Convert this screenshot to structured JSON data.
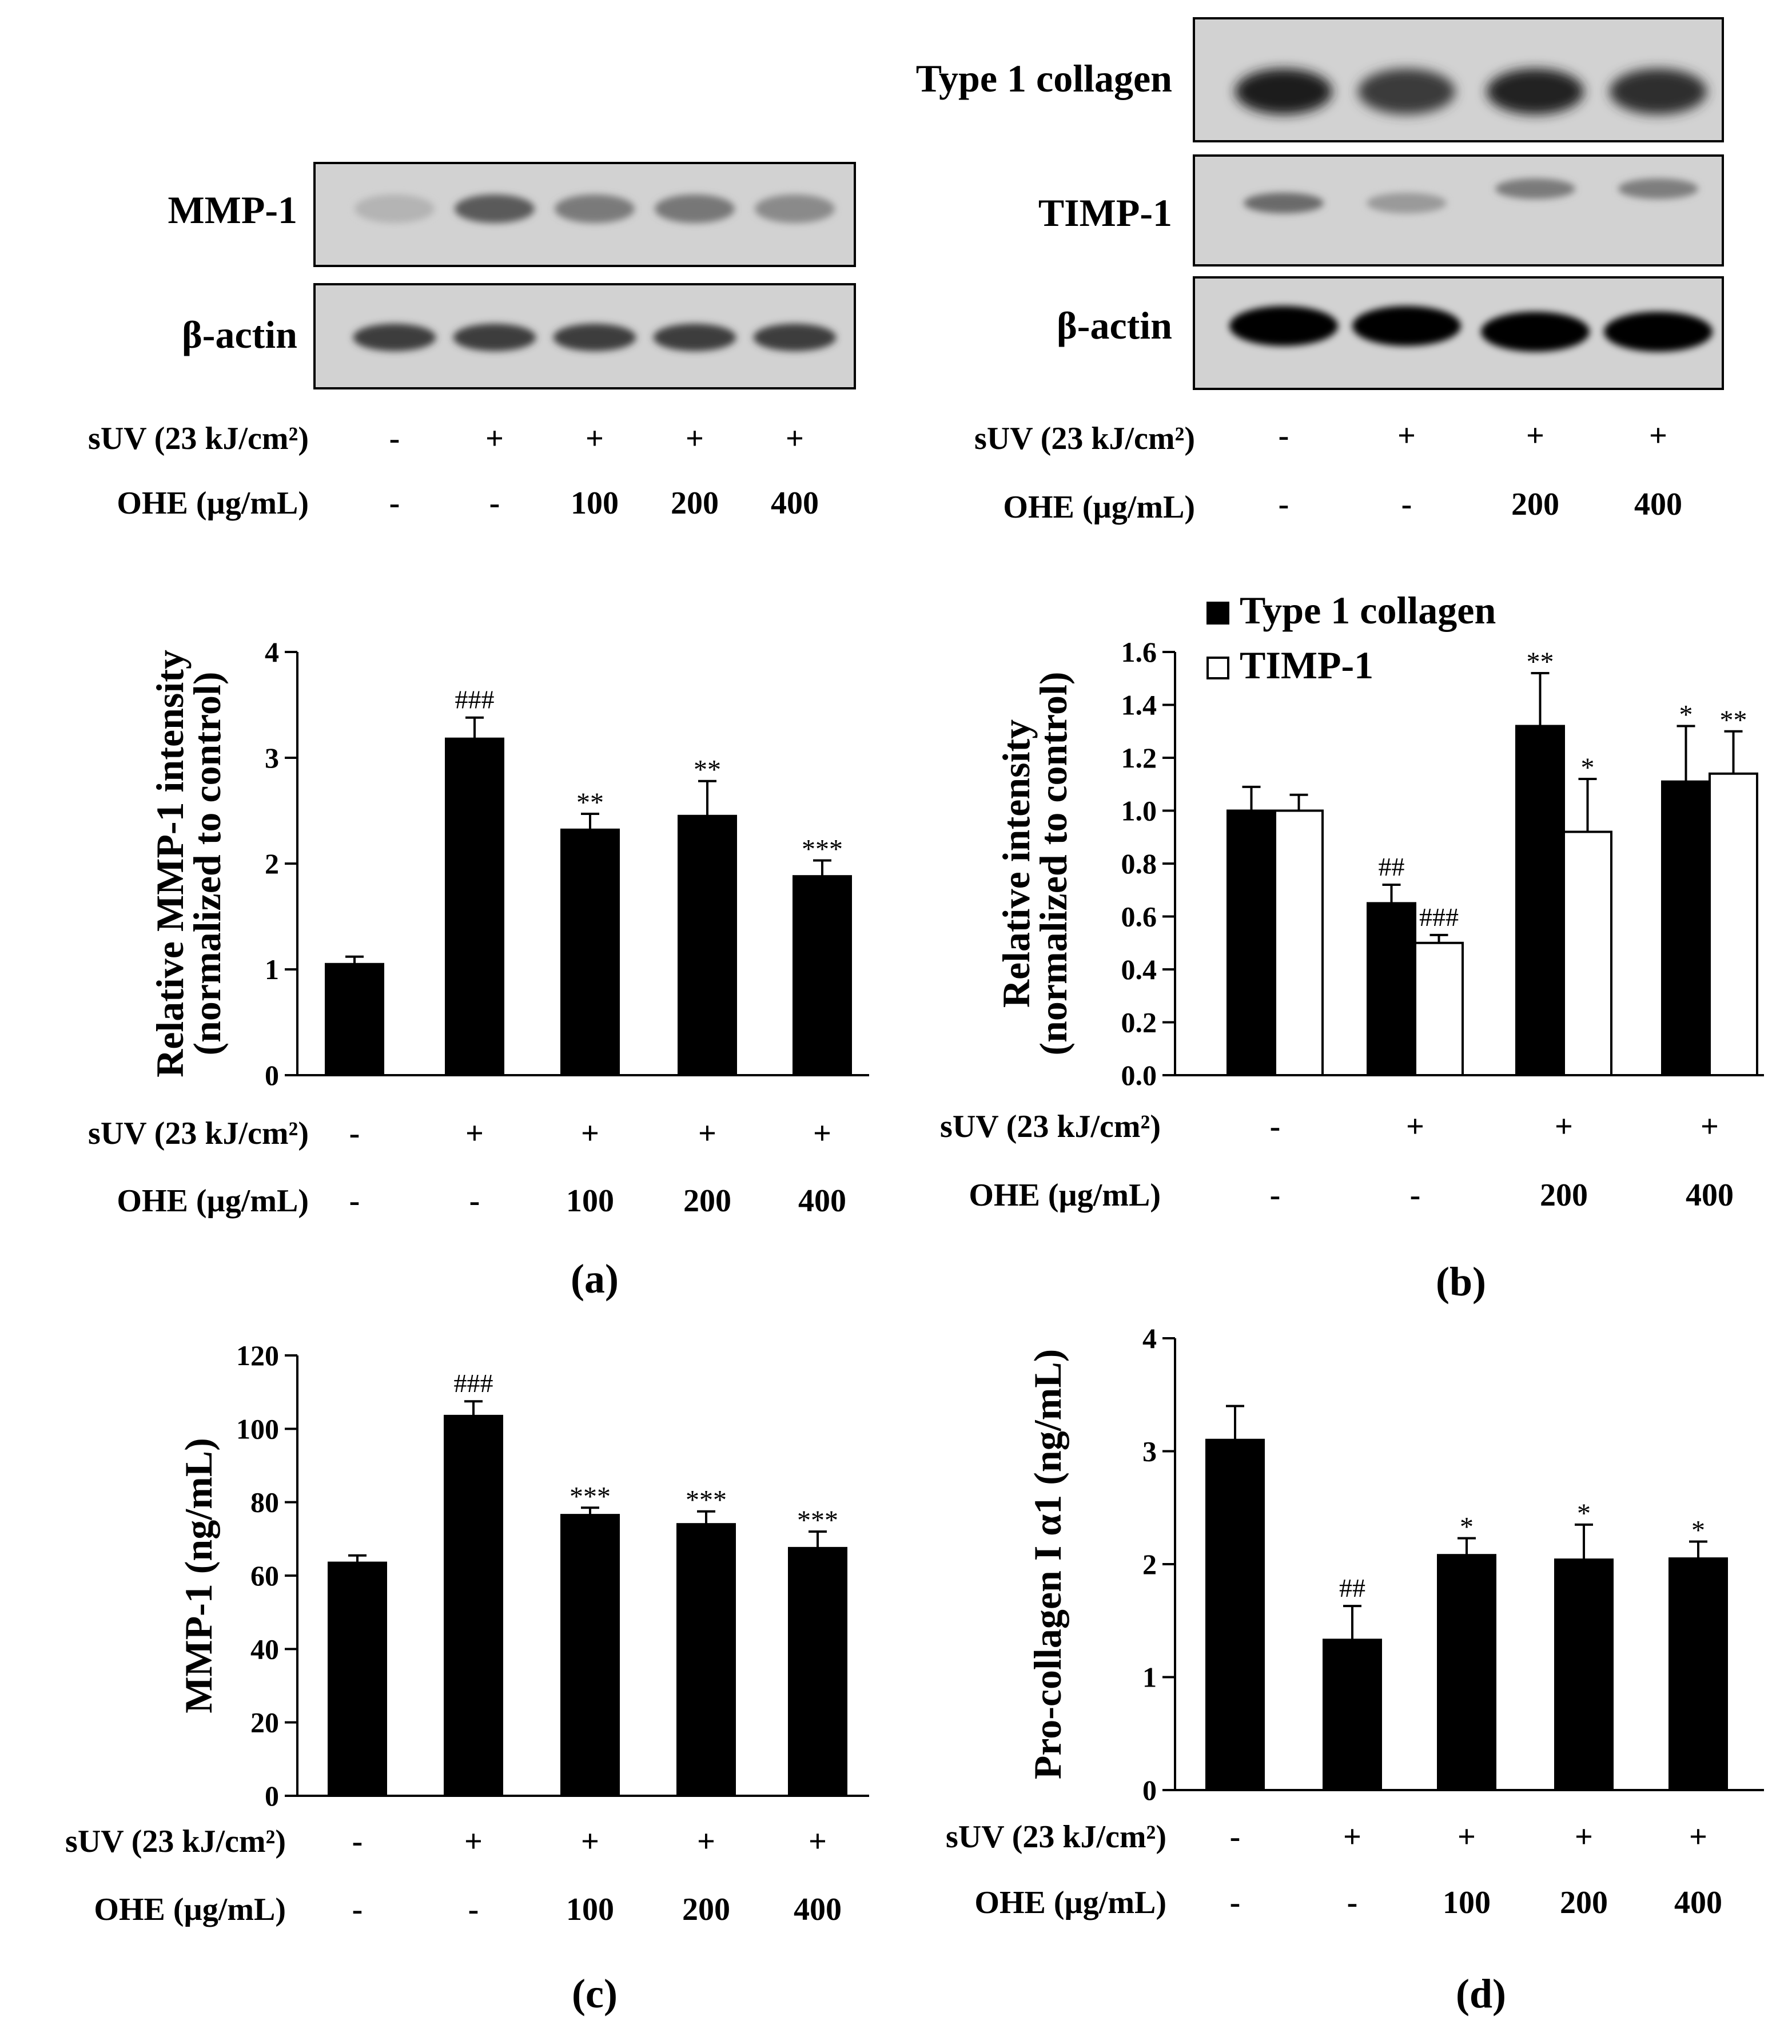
{
  "blot_a": {
    "rows": [
      "MMP-1",
      "β-actin"
    ],
    "suv": {
      "label": "sUV (23 kJ/cm²)",
      "values": [
        "-",
        "+",
        "+",
        "+",
        "+"
      ]
    },
    "ohe": {
      "label": "OHE (µg/mL)",
      "values": [
        "-",
        "-",
        "100",
        "200",
        "400"
      ]
    }
  },
  "blot_b": {
    "rows": [
      "Type 1 collagen",
      "TIMP-1",
      "β-actin"
    ],
    "suv": {
      "label": "sUV (23 kJ/cm²)",
      "values": [
        "-",
        "+",
        "+",
        "+"
      ]
    },
    "ohe": {
      "label": "OHE (µg/mL)",
      "values": [
        "-",
        "-",
        "200",
        "400"
      ]
    }
  },
  "chart_data": [
    {
      "panel": "(a)",
      "type": "bar",
      "ylabel": [
        "Relative MMP-1 intensity",
        "(normalized to control)"
      ],
      "ylim": [
        0,
        4
      ],
      "yticks": [
        "0",
        "1",
        "2",
        "3",
        "4"
      ],
      "suv": {
        "label": "sUV (23 kJ/cm²)",
        "values": [
          "-",
          "+",
          "+",
          "+",
          "+"
        ]
      },
      "ohe": {
        "label": "OHE (µg/mL)",
        "values": [
          "-",
          "-",
          "100",
          "200",
          "400"
        ]
      },
      "series": [
        {
          "values": [
            1.05,
            3.18,
            2.32,
            2.45,
            1.88
          ],
          "errors": [
            0.07,
            0.2,
            0.15,
            0.33,
            0.15
          ],
          "sig": [
            "",
            "###",
            "**",
            "**",
            "***"
          ],
          "color": "#000000"
        }
      ]
    },
    {
      "panel": "(b)",
      "type": "bar",
      "ylabel": [
        "Relative intensity",
        "(normalized to control)"
      ],
      "ylim": [
        0,
        1.6
      ],
      "yticks": [
        "0.0",
        "0.2",
        "0.4",
        "0.6",
        "0.8",
        "1.0",
        "1.2",
        "1.4",
        "1.6"
      ],
      "suv": {
        "label": "sUV (23 kJ/cm²)",
        "values": [
          "-",
          "+",
          "+",
          "+"
        ]
      },
      "ohe": {
        "label": "OHE (µg/mL)",
        "values": [
          "-",
          "-",
          "200",
          "400"
        ]
      },
      "legend": "top-left",
      "series": [
        {
          "name": "Type 1 collagen",
          "values": [
            1.0,
            0.65,
            1.32,
            1.11
          ],
          "errors": [
            0.09,
            0.07,
            0.2,
            0.21
          ],
          "sig": [
            "",
            "##",
            "**",
            "*"
          ],
          "color": "#000000"
        },
        {
          "name": "TIMP-1",
          "values": [
            1.0,
            0.5,
            0.92,
            1.14
          ],
          "errors": [
            0.06,
            0.03,
            0.2,
            0.16
          ],
          "sig": [
            "",
            "###",
            "*",
            "**"
          ],
          "color": "#ffffff"
        }
      ]
    },
    {
      "panel": "(c)",
      "type": "bar",
      "ylabel": [
        "MMP-1 (ng/mL)"
      ],
      "ylim": [
        0,
        120
      ],
      "yticks": [
        "0",
        "20",
        "40",
        "60",
        "80",
        "100",
        "120"
      ],
      "suv": {
        "label": "sUV (23 kJ/cm²)",
        "values": [
          "-",
          "+",
          "+",
          "+",
          "+"
        ]
      },
      "ohe": {
        "label": "OHE (µg/mL)",
        "values": [
          "-",
          "-",
          "100",
          "200",
          "400"
        ]
      },
      "series": [
        {
          "values": [
            63.5,
            103.5,
            76.5,
            74.0,
            67.5
          ],
          "errors": [
            2.0,
            4.0,
            2.0,
            3.5,
            4.5
          ],
          "sig": [
            "",
            "###",
            "***",
            "***",
            "***"
          ],
          "color": "#000000"
        }
      ]
    },
    {
      "panel": "(d)",
      "type": "bar",
      "ylabel": [
        "Pro-collagen I α1 (ng/mL)"
      ],
      "ylim": [
        0,
        4
      ],
      "yticks": [
        "0",
        "1",
        "2",
        "3",
        "4"
      ],
      "suv": {
        "label": "sUV (23 kJ/cm²)",
        "values": [
          "-",
          "+",
          "+",
          "+",
          "+"
        ]
      },
      "ohe": {
        "label": "OHE (µg/mL)",
        "values": [
          "-",
          "-",
          "100",
          "200",
          "400"
        ]
      },
      "series": [
        {
          "values": [
            3.1,
            1.33,
            2.08,
            2.04,
            2.05
          ],
          "errors": [
            0.3,
            0.3,
            0.15,
            0.31,
            0.15
          ],
          "sig": [
            "",
            "##",
            "*",
            "*",
            "*"
          ],
          "color": "#000000"
        }
      ]
    }
  ]
}
